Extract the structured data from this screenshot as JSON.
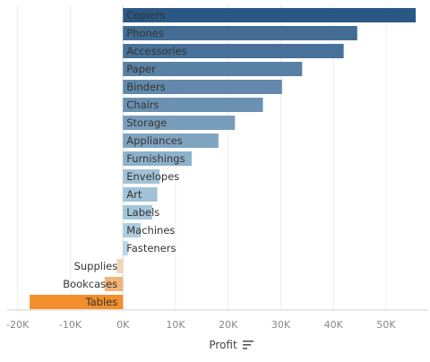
{
  "chart_data": {
    "type": "bar",
    "orientation": "horizontal",
    "categories": [
      "Copiers",
      "Phones",
      "Accessories",
      "Paper",
      "Binders",
      "Chairs",
      "Storage",
      "Appliances",
      "Furnishings",
      "Envelopes",
      "Art",
      "Labels",
      "Machines",
      "Fasteners",
      "Supplies",
      "Bookcases",
      "Tables"
    ],
    "values": [
      55618,
      44516,
      41937,
      34054,
      30222,
      26590,
      21279,
      18138,
      13059,
      6964,
      6528,
      5546,
      3385,
      949,
      -1189,
      -3473,
      -17725
    ],
    "xlabel": "Profit",
    "ylabel": "",
    "xlim": [
      -22000,
      58000
    ],
    "xticks": [
      -20000,
      -10000,
      0,
      10000,
      20000,
      30000,
      40000,
      50000
    ],
    "xtick_labels": [
      "-20K",
      "-10K",
      "0K",
      "10K",
      "20K",
      "30K",
      "40K",
      "50K"
    ],
    "grid": true,
    "colors": {
      "positive_dark": "#2a5783",
      "positive_light": "#b9d7e8",
      "negative_light": "#f1d5b6",
      "negative_dark": "#f28e2b"
    }
  },
  "sort_icon": "sort-descending-icon"
}
